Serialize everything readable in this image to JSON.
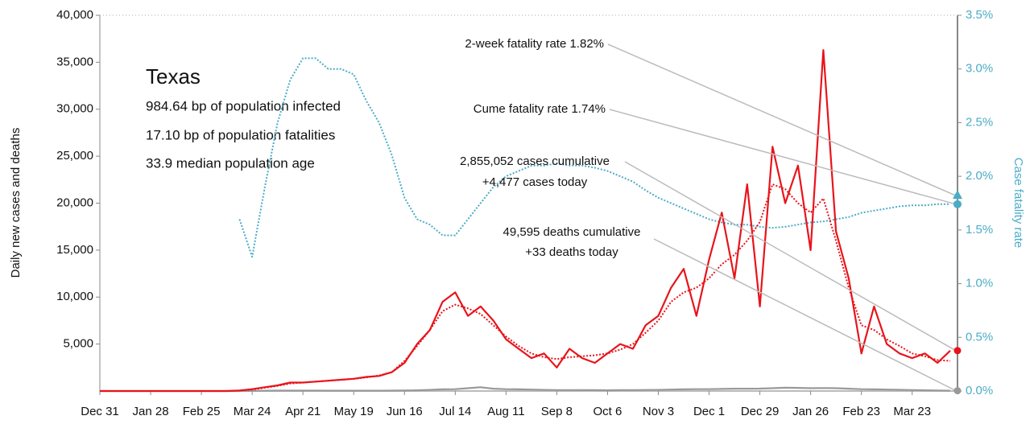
{
  "chart_data": {
    "type": "line",
    "info": {
      "title": "Texas",
      "lines": [
        "984.64 bp of population infected",
        "17.10 bp of population fatalities",
        "33.9 median population age"
      ]
    },
    "ylabel": "Daily new cases and deaths",
    "y2label": "Case fatality rate",
    "categories": [
      "Dec 31",
      null,
      null,
      null,
      "Jan 28",
      null,
      null,
      null,
      "Feb 25",
      null,
      null,
      null,
      "Mar 24",
      null,
      null,
      null,
      "Apr 21",
      null,
      null,
      null,
      "May 19",
      null,
      null,
      null,
      "Jun 16",
      null,
      null,
      null,
      "Jul 14",
      null,
      null,
      null,
      "Aug 11",
      null,
      null,
      null,
      "Sep 8",
      null,
      null,
      null,
      "Oct 6",
      null,
      null,
      null,
      "Nov 3",
      null,
      null,
      null,
      "Dec 1",
      null,
      null,
      null,
      "Dec 29",
      null,
      null,
      null,
      "Jan 26",
      null,
      null,
      null,
      "Feb 23",
      null,
      null,
      null,
      "Mar 23",
      null,
      null,
      null
    ],
    "ylim": [
      0,
      40000
    ],
    "yticks": [
      {
        "value": 5000,
        "label": "5,000"
      },
      {
        "value": 10000,
        "label": "10,000"
      },
      {
        "value": 15000,
        "label": "15,000"
      },
      {
        "value": 20000,
        "label": "20,000"
      },
      {
        "value": 25000,
        "label": "25,000"
      },
      {
        "value": 30000,
        "label": "30,000"
      },
      {
        "value": 35000,
        "label": "35,000"
      },
      {
        "value": 40000,
        "label": "40,000"
      }
    ],
    "y2lim": [
      0,
      3.5
    ],
    "y2ticks": [
      {
        "value": 0,
        "label": "0.0%"
      },
      {
        "value": 0.5,
        "label": "0.5%"
      },
      {
        "value": 1,
        "label": "1.0%"
      },
      {
        "value": 1.5,
        "label": "1.5%"
      },
      {
        "value": 2,
        "label": "2.0%"
      },
      {
        "value": 2.5,
        "label": "2.5%"
      },
      {
        "value": 3,
        "label": "3.0%"
      },
      {
        "value": 3.5,
        "label": "3.5%"
      }
    ],
    "series": [
      {
        "color": "#4bacc6",
        "style": "dotted",
        "axis": "y2",
        "values": [
          null,
          null,
          null,
          null,
          null,
          null,
          null,
          null,
          null,
          null,
          null,
          1.6,
          1.25,
          1.9,
          2.5,
          2.9,
          3.1,
          3.1,
          3.0,
          3.0,
          2.95,
          2.7,
          2.5,
          2.2,
          1.8,
          1.6,
          1.55,
          1.45,
          1.45,
          1.6,
          1.75,
          1.9,
          2.0,
          2.05,
          2.1,
          2.1,
          2.12,
          2.1,
          2.1,
          2.08,
          2.05,
          2.0,
          1.95,
          1.87,
          1.8,
          1.75,
          1.7,
          1.65,
          1.6,
          1.57,
          1.55,
          1.55,
          1.53,
          1.52,
          1.53,
          1.55,
          1.57,
          1.58,
          1.6,
          1.62,
          1.66,
          1.68,
          1.7,
          1.72,
          1.73,
          1.73,
          1.74,
          1.74
        ]
      },
      {
        "color": "#999999",
        "style": "solid",
        "values": [
          0,
          0,
          0,
          0,
          0,
          0,
          0,
          0,
          0,
          0,
          0,
          0,
          10,
          30,
          40,
          40,
          40,
          40,
          30,
          30,
          30,
          30,
          30,
          40,
          50,
          80,
          120,
          180,
          200,
          300,
          400,
          250,
          200,
          180,
          150,
          120,
          100,
          100,
          90,
          90,
          80,
          90,
          100,
          110,
          120,
          150,
          180,
          200,
          200,
          220,
          250,
          250,
          260,
          300,
          350,
          330,
          300,
          320,
          300,
          250,
          200,
          180,
          150,
          130,
          100,
          80,
          60,
          33
        ]
      },
      {
        "color": "#e8141b",
        "style": "dotted",
        "values": [
          0,
          0,
          0,
          0,
          0,
          0,
          0,
          0,
          0,
          0,
          0,
          50,
          150,
          350,
          550,
          800,
          900,
          1000,
          1100,
          1200,
          1300,
          1450,
          1650,
          2000,
          3200,
          4800,
          6500,
          8500,
          9200,
          8800,
          8200,
          7000,
          5800,
          4800,
          4000,
          3600,
          3400,
          3600,
          3700,
          3800,
          4000,
          4400,
          5000,
          6200,
          7500,
          9500,
          10500,
          11000,
          12000,
          13500,
          14500,
          16000,
          18000,
          22000,
          21500,
          20000,
          19000,
          20500,
          16000,
          11000,
          7000,
          6500,
          5500,
          4800,
          4000,
          3700,
          3300,
          3200
        ]
      },
      {
        "color": "#e8141b",
        "style": "solid",
        "values": [
          0,
          0,
          0,
          0,
          0,
          0,
          0,
          0,
          0,
          0,
          0,
          50,
          200,
          400,
          600,
          900,
          900,
          1000,
          1100,
          1200,
          1300,
          1500,
          1600,
          2000,
          3000,
          5000,
          6500,
          9500,
          10500,
          8000,
          9000,
          7500,
          5500,
          4500,
          3500,
          4000,
          2500,
          4500,
          3500,
          3000,
          4000,
          5000,
          4500,
          7000,
          8000,
          11000,
          13000,
          8000,
          14000,
          19000,
          12000,
          22000,
          9000,
          26000,
          20000,
          24000,
          15000,
          36300,
          17000,
          12000,
          4000,
          9000,
          5000,
          4000,
          3500,
          4000,
          3000,
          4300
        ]
      }
    ],
    "annotations": [
      {
        "text": "2-week fatality rate 1.82%",
        "value": 1.82
      },
      {
        "text": "Cume fatality rate 1.74%",
        "value": 1.74
      },
      {
        "lines": [
          "2,855,052 cases cumulative",
          "+4,477 cases today"
        ]
      },
      {
        "lines": [
          "49,595 deaths cumulative",
          "+33 deaths today"
        ]
      }
    ]
  }
}
